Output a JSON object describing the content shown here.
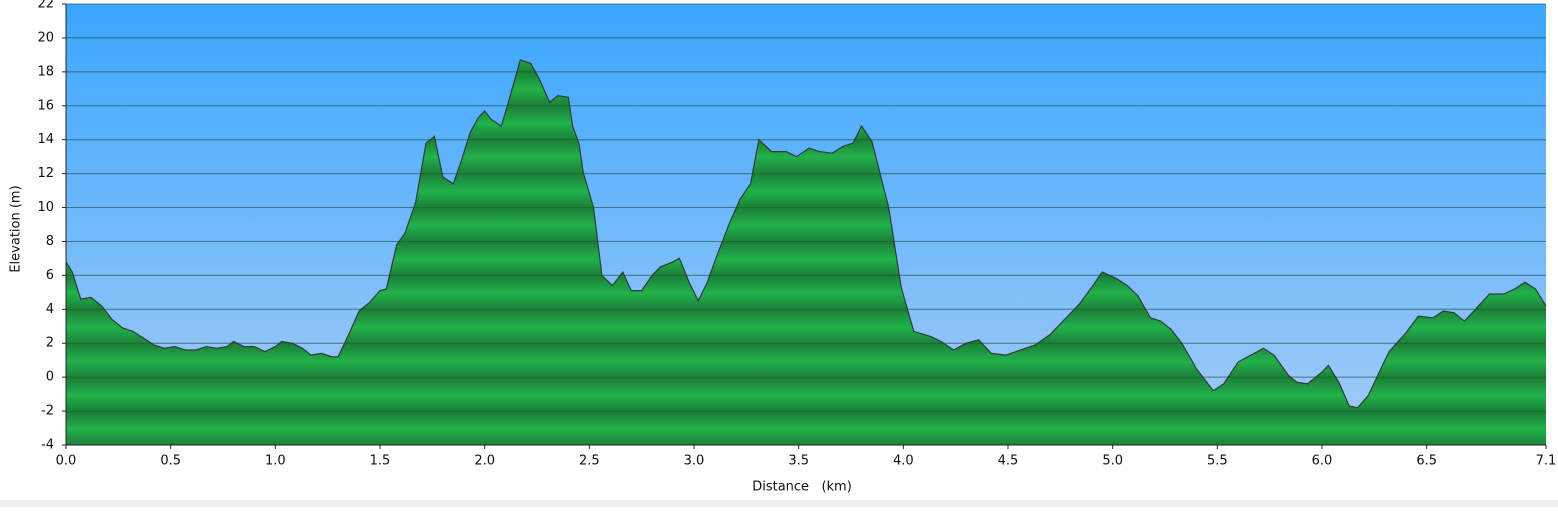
{
  "chart_data": {
    "type": "area",
    "x_label": "Distance   (km)",
    "y_label": "Elevation (m)",
    "color": "#22b14c",
    "line_color": "#2f3a3a",
    "grid": true,
    "xlim": [
      0,
      7.07
    ],
    "xticks": [
      {
        "value": 0,
        "label": "0.0"
      },
      0.5,
      {
        "value": 1,
        "label": "1.0"
      },
      1.5,
      {
        "value": 2,
        "label": "2.0"
      },
      2.5,
      {
        "value": 3,
        "label": "3.0"
      },
      3.5,
      {
        "value": 4,
        "label": "4.0"
      },
      4.5,
      {
        "value": 5,
        "label": "5.0"
      },
      5.5,
      {
        "value": 6,
        "label": "6.0"
      },
      6.5,
      {
        "value": 7.07,
        "label": "7.1"
      }
    ],
    "ylim": [
      -4,
      22
    ],
    "yticks": [
      -4,
      -2,
      0,
      2,
      4,
      6,
      8,
      10,
      12,
      14,
      16,
      18,
      20,
      22
    ],
    "x": [
      0,
      0.03,
      0.07,
      0.12,
      0.17,
      0.22,
      0.27,
      0.32,
      0.37,
      0.42,
      0.47,
      0.52,
      0.57,
      0.62,
      0.67,
      0.72,
      0.77,
      0.8,
      0.85,
      0.9,
      0.95,
      1.0,
      1.03,
      1.08,
      1.13,
      1.17,
      1.22,
      1.27,
      1.3,
      1.35,
      1.4,
      1.45,
      1.5,
      1.53,
      1.58,
      1.62,
      1.67,
      1.72,
      1.76,
      1.8,
      1.85,
      1.89,
      1.93,
      1.97,
      2.0,
      2.03,
      2.08,
      2.12,
      2.17,
      2.22,
      2.26,
      2.31,
      2.35,
      2.4,
      2.42,
      2.45,
      2.47,
      2.52,
      2.56,
      2.61,
      2.66,
      2.7,
      2.75,
      2.8,
      2.84,
      2.9,
      2.93,
      2.98,
      3.02,
      3.06,
      3.12,
      3.17,
      3.22,
      3.27,
      3.31,
      3.37,
      3.44,
      3.49,
      3.55,
      3.6,
      3.66,
      3.71,
      3.76,
      3.8,
      3.85,
      3.93,
      3.99,
      4.05,
      4.13,
      4.18,
      4.24,
      4.3,
      4.36,
      4.42,
      4.49,
      4.56,
      4.63,
      4.7,
      4.77,
      4.84,
      4.9,
      4.95,
      5.02,
      5.07,
      5.12,
      5.18,
      5.23,
      5.28,
      5.33,
      5.4,
      5.48,
      5.53,
      5.6,
      5.66,
      5.72,
      5.77,
      5.84,
      5.88,
      5.93,
      6.0,
      6.03,
      6.08,
      6.13,
      6.17,
      6.22,
      6.27,
      6.32,
      6.4,
      6.46,
      6.53,
      6.58,
      6.63,
      6.68,
      6.74,
      6.8,
      6.87,
      6.92,
      6.97,
      7.02,
      7.07
    ],
    "values": [
      6.8,
      6.2,
      4.6,
      4.7,
      4.2,
      3.4,
      2.9,
      2.7,
      2.3,
      1.9,
      1.7,
      1.8,
      1.6,
      1.6,
      1.8,
      1.7,
      1.8,
      2.1,
      1.8,
      1.8,
      1.5,
      1.8,
      2.1,
      2.0,
      1.7,
      1.3,
      1.4,
      1.2,
      1.2,
      2.5,
      3.9,
      4.4,
      5.1,
      5.2,
      7.8,
      8.5,
      10.3,
      13.8,
      14.2,
      11.8,
      11.4,
      12.8,
      14.4,
      15.3,
      15.7,
      15.2,
      14.8,
      16.5,
      18.7,
      18.5,
      17.6,
      16.2,
      16.6,
      16.5,
      14.8,
      13.8,
      12.1,
      10.0,
      6.0,
      5.4,
      6.2,
      5.1,
      5.1,
      6.0,
      6.5,
      6.8,
      7.0,
      5.5,
      4.5,
      5.5,
      7.5,
      9.1,
      10.5,
      11.4,
      14.0,
      13.3,
      13.3,
      13.0,
      13.5,
      13.3,
      13.2,
      13.6,
      13.8,
      14.8,
      13.9,
      10.0,
      5.3,
      2.7,
      2.4,
      2.1,
      1.6,
      2.0,
      2.2,
      1.4,
      1.3,
      1.6,
      1.9,
      2.5,
      3.4,
      4.3,
      5.3,
      6.2,
      5.8,
      5.4,
      4.8,
      3.5,
      3.3,
      2.8,
      2.0,
      0.5,
      -0.8,
      -0.4,
      0.9,
      1.3,
      1.7,
      1.3,
      0.1,
      -0.3,
      -0.4,
      0.3,
      0.7,
      -0.3,
      -1.7,
      -1.8,
      -1.1,
      0.2,
      1.5,
      2.6,
      3.6,
      3.5,
      3.9,
      3.8,
      3.3,
      4.1,
      4.9,
      4.9,
      5.2,
      5.6,
      5.2,
      4.2
    ]
  }
}
